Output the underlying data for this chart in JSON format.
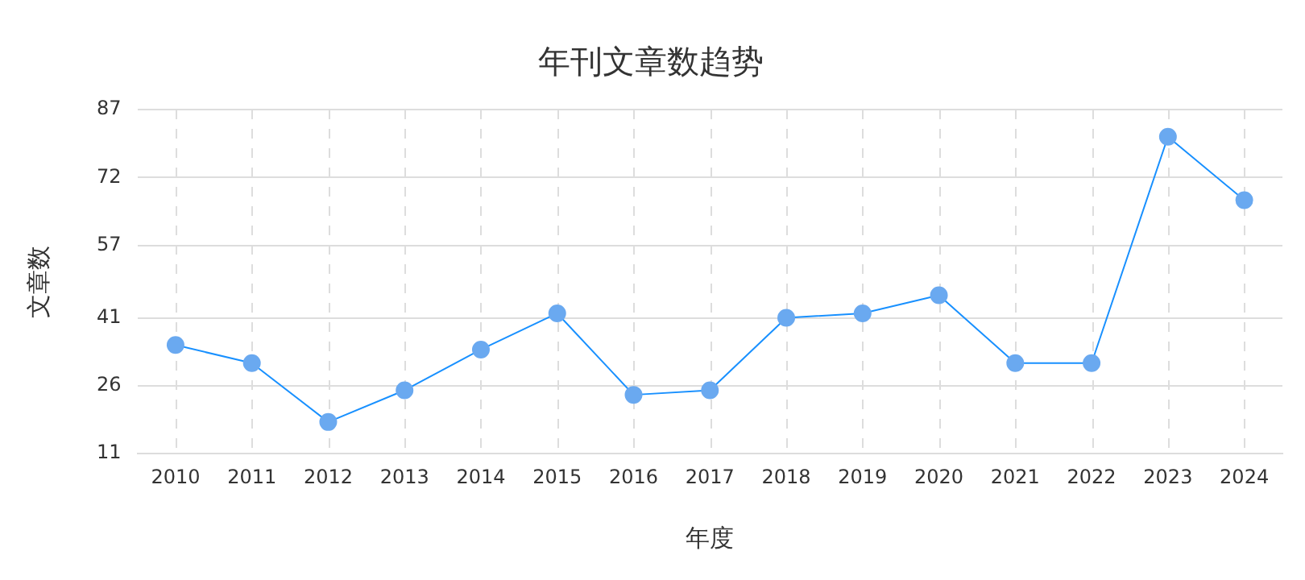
{
  "chart_data": {
    "type": "line",
    "title": "年刊文章数趋势",
    "xlabel": "年度",
    "ylabel": "文章数",
    "categories": [
      "2010",
      "2011",
      "2012",
      "2013",
      "2014",
      "2015",
      "2016",
      "2017",
      "2018",
      "2019",
      "2020",
      "2021",
      "2022",
      "2023",
      "2024"
    ],
    "series": [
      {
        "color": "#1890ff",
        "values": [
          35,
          31,
          18,
          25,
          34,
          42,
          24,
          25,
          41,
          42,
          46,
          31,
          31,
          81,
          67
        ]
      }
    ],
    "ylim": [
      11,
      87
    ],
    "yticks": [
      11,
      26,
      41,
      57,
      72,
      87
    ],
    "grid": true,
    "marker": "circle",
    "line_style": "solid"
  }
}
